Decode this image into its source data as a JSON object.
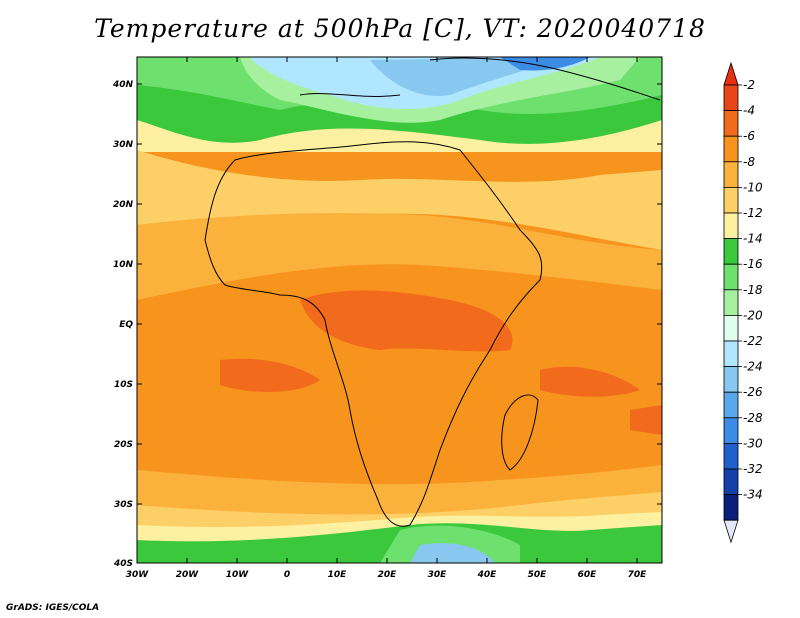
{
  "title": "Temperature at 500hPa [C], VT: 2020040718",
  "credit": "GrADS: IGES/COLA",
  "map": {
    "lon_ticks": [
      "30W",
      "20W",
      "10W",
      "0",
      "10E",
      "20E",
      "30E",
      "40E",
      "50E",
      "60E",
      "70E"
    ],
    "lat_ticks": [
      "40N",
      "30N",
      "20N",
      "10N",
      "EQ",
      "10S",
      "20S",
      "30S",
      "40S"
    ]
  },
  "colorbar": {
    "labels": [
      "-2",
      "-4",
      "-6",
      "-8",
      "-10",
      "-12",
      "-14",
      "-16",
      "-18",
      "-20",
      "-22",
      "-24",
      "-26",
      "-28",
      "-30",
      "-32",
      "-34"
    ],
    "colors": [
      "#e8461a",
      "#f26a1c",
      "#f7941e",
      "#fbb23d",
      "#fcd067",
      "#fdf0a0",
      "#3cc83c",
      "#6ee06e",
      "#a6f0a0",
      "#e0fff0",
      "#b0e6ff",
      "#88c8f0",
      "#5aa8ec",
      "#3c8ce6",
      "#2060cc",
      "#1440aa",
      "#0a1e7a"
    ],
    "top_arrow_color": "#e62e10",
    "bottom_arrow_color": "#e6e6fa"
  }
}
